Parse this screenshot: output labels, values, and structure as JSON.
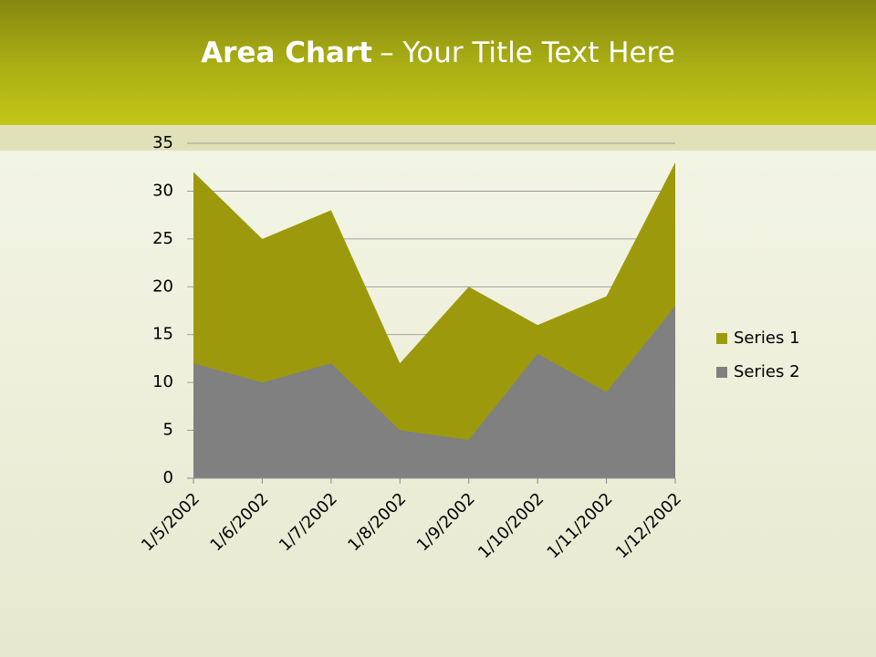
{
  "title_parts": [
    "Area Chart",
    "– Your Title Text Here"
  ],
  "chart_data": {
    "type": "area",
    "categories": [
      "1/5/2002",
      "1/6/2002",
      "1/7/2002",
      "1/8/2002",
      "1/9/2002",
      "1/10/2002",
      "1/11/2002",
      "1/12/2002"
    ],
    "series": [
      {
        "name": "Series 1",
        "color": "#9c9a0c",
        "values": [
          32,
          25,
          28,
          12,
          20,
          16,
          19,
          33
        ]
      },
      {
        "name": "Series 2",
        "color": "#808080",
        "values": [
          12,
          10,
          12,
          5,
          4,
          13,
          9,
          18
        ]
      }
    ],
    "ylim": [
      0,
      35
    ],
    "yticks": [
      0,
      5,
      10,
      15,
      20,
      25,
      30,
      35
    ],
    "grid": true,
    "legend": "right"
  }
}
